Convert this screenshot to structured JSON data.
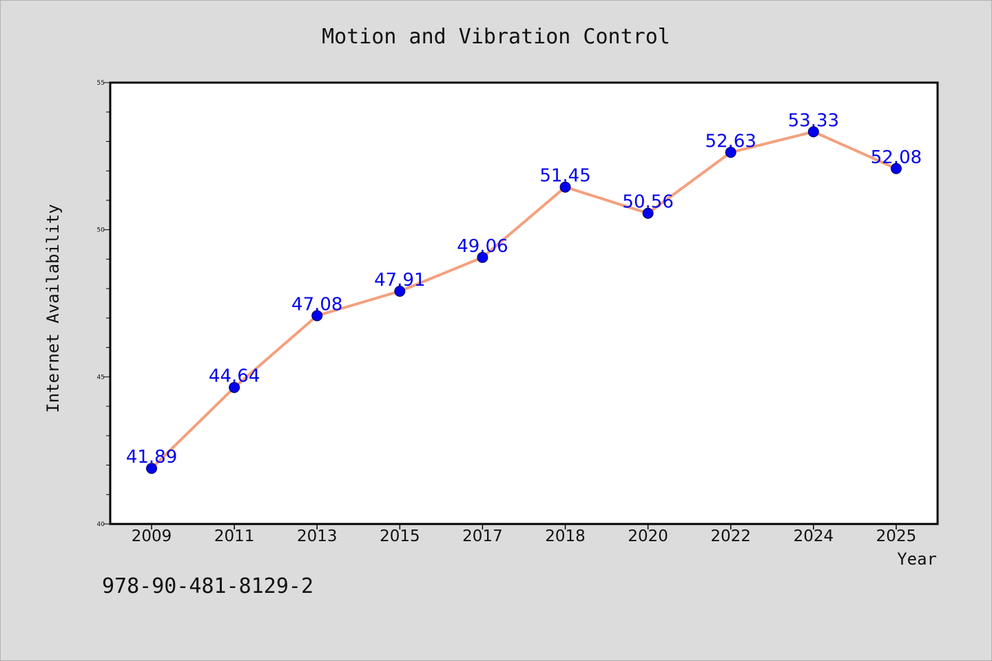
{
  "chart_data": {
    "type": "line",
    "title": "Motion and Vibration Control",
    "xlabel": "Year",
    "ylabel": "Internet Availability",
    "categories": [
      "2009",
      "2011",
      "2013",
      "2015",
      "2017",
      "2018",
      "2020",
      "2022",
      "2024",
      "2025"
    ],
    "series": [
      {
        "values": [
          41.89,
          44.64,
          47.08,
          47.91,
          49.06,
          51.45,
          50.56,
          52.63,
          53.33,
          52.08
        ],
        "line_color": "#f4a07e",
        "marker_color": "#0000ee",
        "label_color": "#0000ee"
      }
    ],
    "ylim": [
      40,
      55
    ],
    "yticks": [
      "40",
      "45",
      "50",
      "55"
    ],
    "grid": false,
    "legend": "none"
  },
  "footer": {
    "isbn": "978-90-481-8129-2"
  }
}
